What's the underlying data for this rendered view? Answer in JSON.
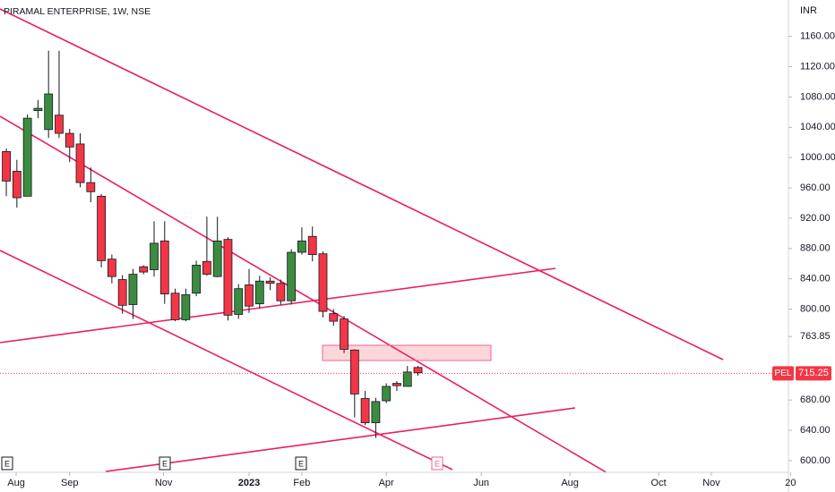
{
  "chart_data": {
    "type": "candlestick",
    "title": "PIRAMAL ENTERPRISE, 1W, NSE",
    "currency": "INR",
    "symbol_label": "PEL",
    "last_price": 715.25,
    "up_color": "#3b8c3f",
    "down_color": "#f23645",
    "open": [
      1008,
      982,
      949,
      1062,
      1037,
      1056,
      1032,
      1018,
      967,
      949,
      866,
      839,
      806,
      856,
      852,
      890,
      821,
      786,
      821,
      863,
      843,
      892,
      793,
      832,
      807,
      837,
      834,
      811,
      875,
      896,
      873,
      794,
      787,
      746,
      682,
      650,
      679,
      702,
      698,
      723
    ],
    "high": [
      1012,
      997,
      1057,
      1076,
      1141,
      1141,
      1038,
      1032,
      987,
      952,
      872,
      845,
      853,
      858,
      916,
      916,
      827,
      827,
      864,
      922,
      922,
      895,
      833,
      853,
      844,
      842,
      839,
      879,
      908,
      909,
      876,
      800,
      791,
      747,
      692,
      683,
      702,
      705,
      725,
      725
    ],
    "low": [
      949,
      934,
      949,
      1052,
      1026,
      1026,
      994,
      961,
      941,
      855,
      834,
      794,
      787,
      846,
      843,
      807,
      784,
      784,
      817,
      844,
      842,
      785,
      787,
      795,
      801,
      825,
      806,
      806,
      872,
      863,
      789,
      778,
      742,
      657,
      647,
      630,
      676,
      692,
      698,
      712
    ],
    "close": [
      969,
      947,
      1052,
      1065,
      1084,
      1032,
      1014,
      967,
      955,
      864,
      843,
      805,
      846,
      849,
      887,
      820,
      786,
      819,
      858,
      846,
      890,
      792,
      827,
      804,
      837,
      834,
      811,
      875,
      890,
      872,
      797,
      784,
      747,
      688,
      650,
      678,
      698,
      699,
      717,
      716
    ],
    "xlim": [
      -0.6,
      74.1
    ],
    "xticks": [
      {
        "value": 0.93,
        "label": "Aug"
      },
      {
        "value": 6.0,
        "label": "Sep"
      },
      {
        "value": 14.9,
        "label": "Nov"
      },
      {
        "value": 23.0,
        "label": "2023"
      },
      {
        "value": 28.0,
        "label": "Feb"
      },
      {
        "value": 36.0,
        "label": "Apr"
      },
      {
        "value": 45.0,
        "label": "Jun"
      },
      {
        "value": 53.4,
        "label": "Aug"
      },
      {
        "value": 61.8,
        "label": "Oct"
      },
      {
        "value": 66.8,
        "label": "Nov"
      },
      {
        "value": 74.3,
        "label": "20"
      }
    ],
    "ylim": [
      584.6,
      1208
    ],
    "yticks": [
      {
        "value": 600,
        "label": "600.00"
      },
      {
        "value": 640,
        "label": "640.00"
      },
      {
        "value": 680,
        "label": "680.00"
      },
      763.85,
      {
        "value": 800,
        "label": "800.00"
      },
      {
        "value": 840,
        "label": "840.00"
      },
      {
        "value": 880,
        "label": "880.00"
      },
      {
        "value": 920,
        "label": "920.00"
      },
      {
        "value": 960,
        "label": "960.00"
      },
      {
        "value": 1000,
        "label": "1000.00"
      },
      {
        "value": 1040,
        "label": "1040.00"
      },
      {
        "value": 1080,
        "label": "1080.00"
      },
      {
        "value": 1120,
        "label": "1120.00"
      },
      {
        "value": 1160,
        "label": "1160.00"
      }
    ],
    "event_markers": [
      "E",
      "E",
      "E",
      "E"
    ]
  }
}
